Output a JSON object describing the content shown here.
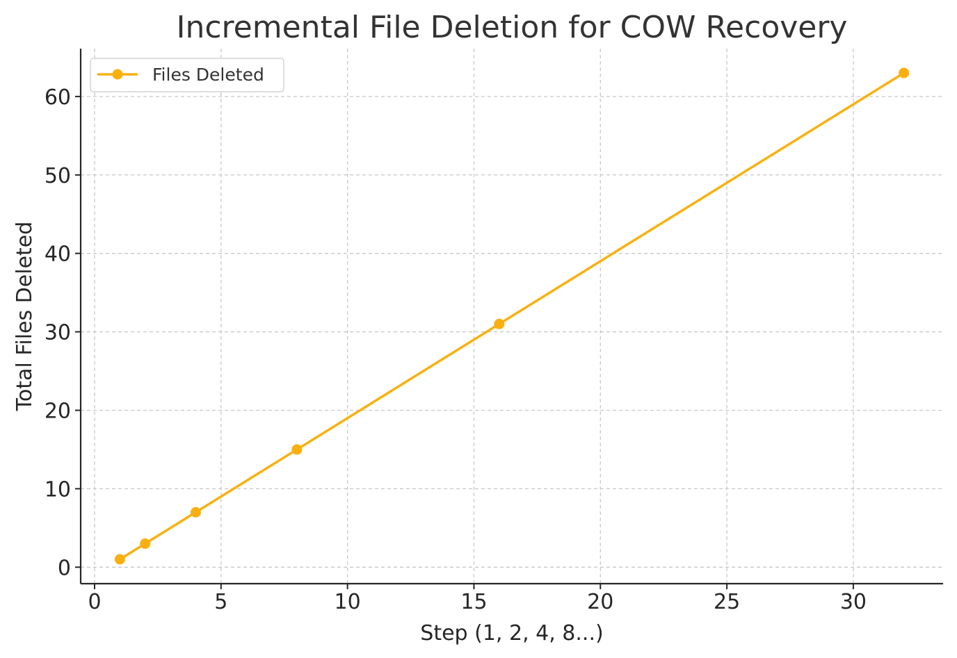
{
  "chart_data": {
    "type": "line",
    "title": "Incremental File Deletion for COW Recovery",
    "xlabel": "Step (1, 2, 4, 8...)",
    "ylabel": "Total Files Deleted",
    "xlim": [
      -0.55,
      33.55
    ],
    "ylim": [
      -2.1,
      66.1
    ],
    "xticks": [
      0,
      5,
      10,
      15,
      20,
      25,
      30
    ],
    "yticks": [
      0,
      10,
      20,
      30,
      40,
      50,
      60
    ],
    "grid": true,
    "legend_position": "top-left",
    "series": [
      {
        "name": "Files Deleted",
        "color": "#f9b00f",
        "marker": "circle",
        "x": [
          1,
          2,
          4,
          8,
          16,
          32
        ],
        "y": [
          1,
          3,
          7,
          15,
          31,
          63
        ]
      }
    ]
  }
}
